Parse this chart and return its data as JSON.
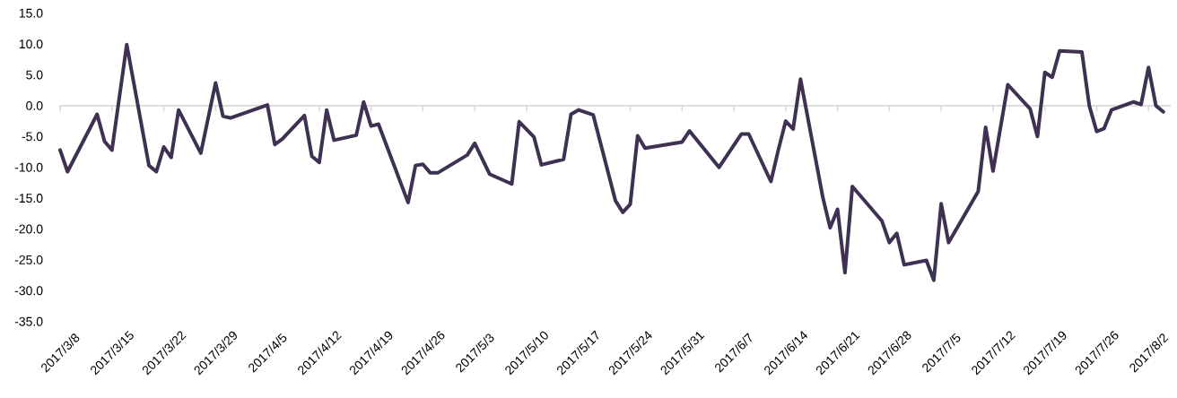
{
  "chart_data": {
    "type": "line",
    "color": "#3f3151",
    "x": [
      "2017-03-08",
      "2017-03-09",
      "2017-03-13",
      "2017-03-14",
      "2017-03-15",
      "2017-03-17",
      "2017-03-20",
      "2017-03-21",
      "2017-03-22",
      "2017-03-23",
      "2017-03-24",
      "2017-03-27",
      "2017-03-29",
      "2017-03-30",
      "2017-03-31",
      "2017-04-05",
      "2017-04-06",
      "2017-04-07",
      "2017-04-10",
      "2017-04-11",
      "2017-04-12",
      "2017-04-13",
      "2017-04-14",
      "2017-04-17",
      "2017-04-18",
      "2017-04-19",
      "2017-04-20",
      "2017-04-24",
      "2017-04-25",
      "2017-04-26",
      "2017-04-27",
      "2017-04-28",
      "2017-05-02",
      "2017-05-03",
      "2017-05-05",
      "2017-05-08",
      "2017-05-09",
      "2017-05-11",
      "2017-05-12",
      "2017-05-15",
      "2017-05-16",
      "2017-05-17",
      "2017-05-19",
      "2017-05-22",
      "2017-05-23",
      "2017-05-24",
      "2017-05-25",
      "2017-05-26",
      "2017-05-31",
      "2017-06-01",
      "2017-06-05",
      "2017-06-08",
      "2017-06-09",
      "2017-06-12",
      "2017-06-13",
      "2017-06-14",
      "2017-06-15",
      "2017-06-16",
      "2017-06-19",
      "2017-06-20",
      "2017-06-21",
      "2017-06-22",
      "2017-06-23",
      "2017-06-27",
      "2017-06-28",
      "2017-06-29",
      "2017-06-30",
      "2017-07-03",
      "2017-07-04",
      "2017-07-05",
      "2017-07-06",
      "2017-07-10",
      "2017-07-11",
      "2017-07-12",
      "2017-07-14",
      "2017-07-17",
      "2017-07-18",
      "2017-07-19",
      "2017-07-20",
      "2017-07-21",
      "2017-07-24",
      "2017-07-25",
      "2017-07-26",
      "2017-07-27",
      "2017-07-28",
      "2017-07-31",
      "2017-08-01",
      "2017-08-02",
      "2017-08-03",
      "2017-08-04"
    ],
    "values": [
      -7.2,
      -10.7,
      -1.4,
      -5.8,
      -7.2,
      9.9,
      -9.7,
      -10.7,
      -6.7,
      -8.4,
      -0.7,
      -7.7,
      3.7,
      -1.7,
      -2.0,
      0.1,
      -6.3,
      -5.4,
      -1.6,
      -8.2,
      -9.2,
      -0.7,
      -5.6,
      -4.8,
      0.6,
      -3.3,
      -3.0,
      -15.7,
      -9.7,
      -9.5,
      -10.9,
      -10.9,
      -8.0,
      -6.1,
      -11.1,
      -12.7,
      -2.6,
      -5.1,
      -9.6,
      -8.7,
      -1.4,
      -0.7,
      -1.5,
      -15.4,
      -17.3,
      -16.0,
      -4.9,
      -6.9,
      -5.9,
      -4.1,
      -10.0,
      -4.6,
      -4.6,
      -12.3,
      -7.2,
      -2.5,
      -3.8,
      4.3,
      -14.8,
      -19.8,
      -16.8,
      -27.1,
      -13.1,
      -18.7,
      -22.2,
      -20.7,
      -25.8,
      -25.1,
      -28.3,
      -15.9,
      -22.2,
      -13.9,
      -3.5,
      -10.6,
      3.4,
      -0.5,
      -5.0,
      5.4,
      4.6,
      8.9,
      8.7,
      0.0,
      -4.2,
      -3.7,
      -0.7,
      0.6,
      0.2,
      6.2,
      0.0,
      -1.0
    ],
    "xlim": [
      "2017-03-08",
      "2017-08-05"
    ],
    "xticks": [
      {
        "value": "2017-03-08",
        "label": "2017/3/8"
      },
      {
        "value": "2017-03-15",
        "label": "2017/3/15"
      },
      {
        "value": "2017-03-22",
        "label": "2017/3/22"
      },
      {
        "value": "2017-03-29",
        "label": "2017/3/29"
      },
      {
        "value": "2017-04-05",
        "label": "2017/4/5"
      },
      {
        "value": "2017-04-12",
        "label": "2017/4/12"
      },
      {
        "value": "2017-04-19",
        "label": "2017/4/19"
      },
      {
        "value": "2017-04-26",
        "label": "2017/4/26"
      },
      {
        "value": "2017-05-03",
        "label": "2017/5/3"
      },
      {
        "value": "2017-05-10",
        "label": "2017/5/10"
      },
      {
        "value": "2017-05-17",
        "label": "2017/5/17"
      },
      {
        "value": "2017-05-24",
        "label": "2017/5/24"
      },
      {
        "value": "2017-05-31",
        "label": "2017/5/31"
      },
      {
        "value": "2017-06-07",
        "label": "2017/6/7"
      },
      {
        "value": "2017-06-14",
        "label": "2017/6/14"
      },
      {
        "value": "2017-06-21",
        "label": "2017/6/21"
      },
      {
        "value": "2017-06-28",
        "label": "2017/6/28"
      },
      {
        "value": "2017-07-05",
        "label": "2017/7/5"
      },
      {
        "value": "2017-07-12",
        "label": "2017/7/12"
      },
      {
        "value": "2017-07-19",
        "label": "2017/7/19"
      },
      {
        "value": "2017-07-26",
        "label": "2017/7/26"
      },
      {
        "value": "2017-08-02",
        "label": "2017/8/2"
      }
    ],
    "ylim": [
      -35,
      15
    ],
    "yticks": [
      {
        "value": -35,
        "label": "-35.0"
      },
      {
        "value": -30,
        "label": "-30.0"
      },
      {
        "value": -25,
        "label": "-25.0"
      },
      {
        "value": -20,
        "label": "-20.0"
      },
      {
        "value": -15,
        "label": "-15.0"
      },
      {
        "value": -10,
        "label": "-10.0"
      },
      {
        "value": -5,
        "label": "-5.0"
      },
      {
        "value": 0,
        "label": "0.0"
      },
      {
        "value": 5,
        "label": "5.0"
      },
      {
        "value": 10,
        "label": "10.0"
      },
      {
        "value": 15,
        "label": "15.0"
      }
    ]
  }
}
